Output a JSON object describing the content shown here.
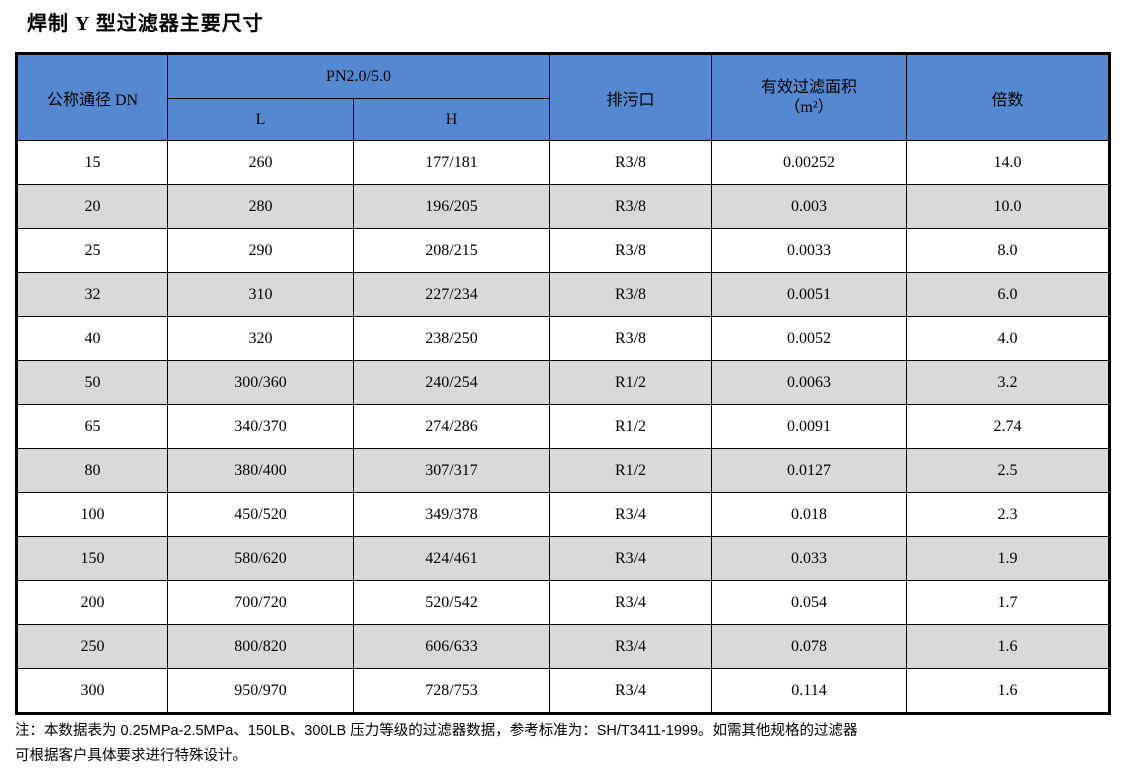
{
  "page": {
    "title": "焊制 Y 型过滤器主要尺寸"
  },
  "colors": {
    "header_bg": "#5488d0",
    "stripe_bg": "#d9d9d9",
    "border": "#000000",
    "text": "#000000"
  },
  "table": {
    "header": {
      "col_dn": "公称通径 DN",
      "group_pn": "PN2.0/5.0",
      "col_l": "L",
      "col_h": "H",
      "col_drain": "排污口",
      "col_area_line1": "有效过滤面积",
      "col_area_line2": "（m²）",
      "col_multiplier": "倍数"
    },
    "columns": [
      "公称通径 DN",
      "L",
      "H",
      "排污口",
      "有效过滤面积（m²）",
      "倍数"
    ],
    "rows": [
      [
        "15",
        "260",
        "177/181",
        "R3/8",
        "0.00252",
        "14.0"
      ],
      [
        "20",
        "280",
        "196/205",
        "R3/8",
        "0.003",
        "10.0"
      ],
      [
        "25",
        "290",
        "208/215",
        "R3/8",
        "0.0033",
        "8.0"
      ],
      [
        "32",
        "310",
        "227/234",
        "R3/8",
        "0.0051",
        "6.0"
      ],
      [
        "40",
        "320",
        "238/250",
        "R3/8",
        "0.0052",
        "4.0"
      ],
      [
        "50",
        "300/360",
        "240/254",
        "R1/2",
        "0.0063",
        "3.2"
      ],
      [
        "65",
        "340/370",
        "274/286",
        "R1/2",
        "0.0091",
        "2.74"
      ],
      [
        "80",
        "380/400",
        "307/317",
        "R1/2",
        "0.0127",
        "2.5"
      ],
      [
        "100",
        "450/520",
        "349/378",
        "R3/4",
        "0.018",
        "2.3"
      ],
      [
        "150",
        "580/620",
        "424/461",
        "R3/4",
        "0.033",
        "1.9"
      ],
      [
        "200",
        "700/720",
        "520/542",
        "R3/4",
        "0.054",
        "1.7"
      ],
      [
        "250",
        "800/820",
        "606/633",
        "R3/4",
        "0.078",
        "1.6"
      ],
      [
        "300",
        "950/970",
        "728/753",
        "R3/4",
        "0.114",
        "1.6"
      ]
    ]
  },
  "note": {
    "line1": "注：本数据表为 0.25MPa-2.5MPa、150LB、300LB 压力等级的过滤器数据，参考标准为：SH/T3411-1999。如需其他规格的过滤器",
    "line2": "可根据客户具体要求进行特殊设计。"
  }
}
